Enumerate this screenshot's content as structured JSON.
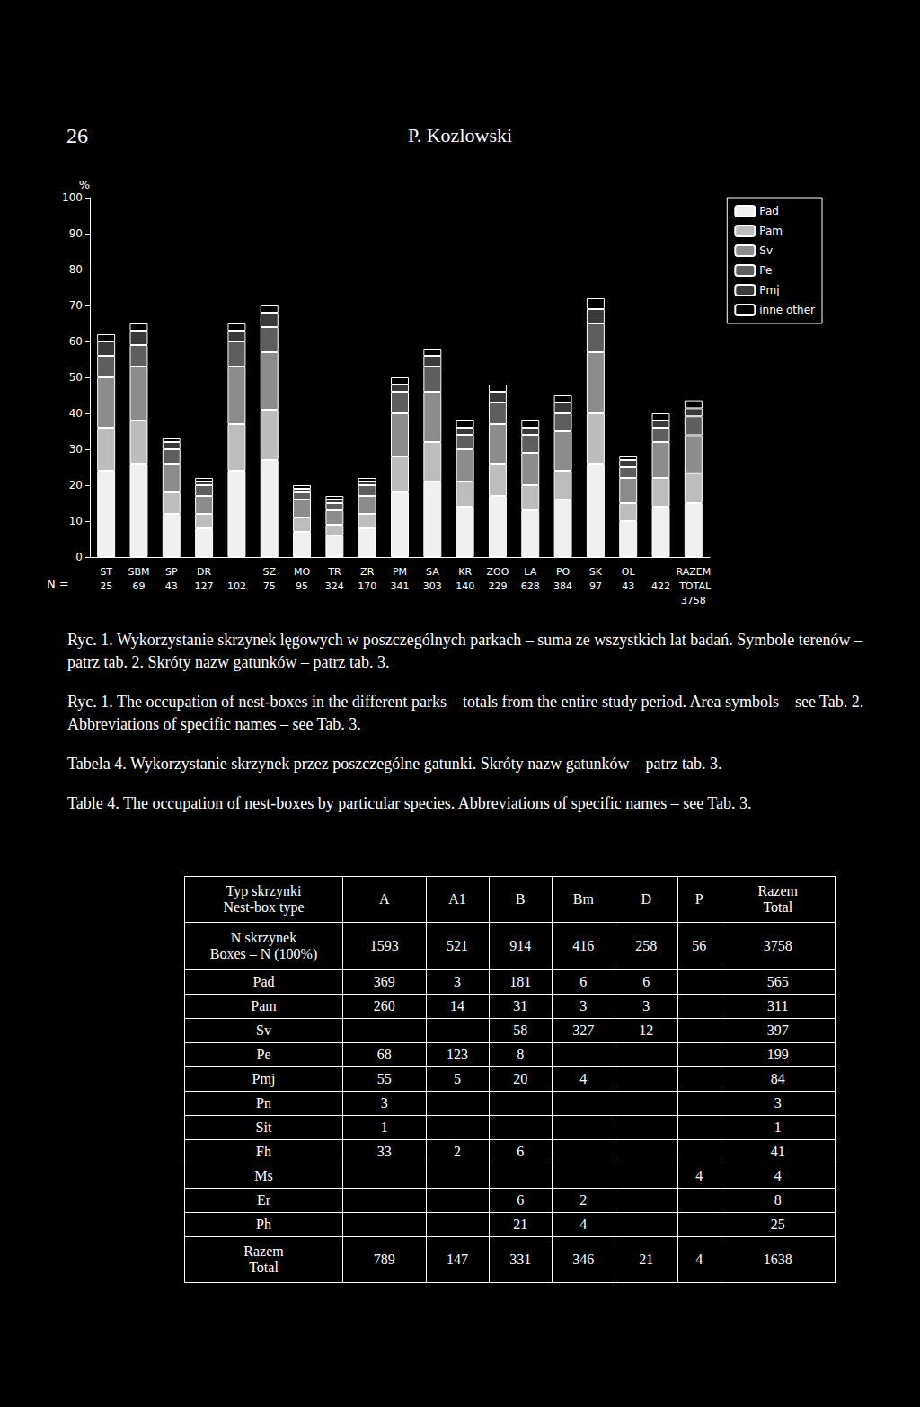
{
  "header": {
    "page": "26",
    "author": "P. Kozlowski"
  },
  "chart_data": {
    "type": "bar",
    "stacked": true,
    "grid": false,
    "legend": "right",
    "y_label": "%",
    "n_label": "N =",
    "categories": [
      "ST",
      "SBM",
      "SP",
      "DR",
      null,
      "SZ",
      "MO",
      "TR",
      "ZR",
      "PM",
      "SA",
      "KR",
      "ZOO",
      "LA",
      "PO",
      "SK",
      "OL",
      null,
      "RAZEM TOTAL"
    ],
    "n": [
      25,
      69,
      43,
      127,
      102,
      75,
      95,
      324,
      170,
      341,
      303,
      140,
      229,
      628,
      384,
      97,
      43,
      422,
      3758
    ],
    "ylim": [
      0,
      100
    ],
    "yticks": [
      0,
      10,
      20,
      30,
      40,
      50,
      60,
      70,
      80,
      90,
      100
    ],
    "series": [
      {
        "name": "Pad",
        "color": "#f0f0f0",
        "values": [
          24,
          26,
          12,
          8,
          24,
          27,
          7,
          6,
          8,
          18,
          21,
          14,
          17,
          13,
          16,
          26,
          10,
          14,
          15.0
        ]
      },
      {
        "name": "Pam",
        "color": "#bdbdbd",
        "values": [
          12,
          12,
          6,
          4,
          13,
          14,
          4,
          3,
          4,
          10,
          11,
          7,
          9,
          7,
          8,
          14,
          5,
          8,
          8.3
        ]
      },
      {
        "name": "Sv",
        "color": "#8c8c8c",
        "values": [
          14,
          15,
          8,
          5,
          16,
          16,
          5,
          4,
          5,
          12,
          14,
          9,
          11,
          9,
          11,
          17,
          7,
          10,
          10.6
        ]
      },
      {
        "name": "Pe",
        "color": "#5e5e5e",
        "values": [
          6,
          6,
          4,
          3,
          7,
          7,
          2,
          2,
          3,
          6,
          7,
          4,
          6,
          5,
          5,
          8,
          3,
          4,
          5.3
        ]
      },
      {
        "name": "Pmj",
        "color": "#3a3a3a",
        "values": [
          4,
          4,
          2,
          1,
          3,
          4,
          1,
          1,
          1,
          2,
          3,
          2,
          3,
          2,
          3,
          4,
          2,
          2,
          2.2
        ]
      },
      {
        "name": "inne other",
        "color": "#000000",
        "values": [
          2,
          2,
          1,
          1,
          2,
          2,
          1,
          1,
          1,
          2,
          2,
          2,
          2,
          2,
          2,
          3,
          1,
          2,
          2.2
        ]
      }
    ]
  },
  "captions": [
    "Ryc. 1. Wykorzystanie skrzynek lęgowych w poszczególnych parkach – suma ze wszystkich lat badań. Symbole terenów – patrz tab. 2. Skróty nazw gatunków – patrz tab. 3.",
    "Ryc. 1. The occupation of nest-boxes in the different parks – totals from the entire study period. Area symbols – see Tab. 2. Abbreviations of specific names – see Tab. 3.",
    "Tabela 4. Wykorzystanie skrzynek przez poszczególne gatunki. Skróty nazw gatunków – patrz tab. 3.",
    "Table 4. The occupation of nest-boxes by particular species. Abbreviations of specific names – see Tab. 3."
  ],
  "table": {
    "header": [
      [
        "Typ skrzynki",
        "Nest-box type"
      ],
      [
        "A"
      ],
      [
        "A1"
      ],
      [
        "B"
      ],
      [
        "Bm"
      ],
      [
        "D"
      ],
      [
        "P"
      ],
      [
        "Razem",
        "Total"
      ]
    ],
    "rows": [
      [
        [
          "N skrzynek",
          "Boxes – N (100%)"
        ],
        "1593",
        "521",
        "914",
        "416",
        "258",
        "56",
        "3758"
      ],
      [
        [
          "Pad"
        ],
        "369",
        "3",
        "181",
        "6",
        "6",
        null,
        "565"
      ],
      [
        [
          "Pam"
        ],
        "260",
        "14",
        "31",
        "3",
        "3",
        null,
        "311"
      ],
      [
        [
          "Sv"
        ],
        null,
        null,
        "58",
        "327",
        "12",
        null,
        "397"
      ],
      [
        [
          "Pe"
        ],
        "68",
        "123",
        "8",
        null,
        null,
        null,
        "199"
      ],
      [
        [
          "Pmj"
        ],
        "55",
        "5",
        "20",
        "4",
        null,
        null,
        "84"
      ],
      [
        [
          "Pn"
        ],
        "3",
        null,
        null,
        null,
        null,
        null,
        "3"
      ],
      [
        [
          "Sit"
        ],
        "1",
        null,
        null,
        null,
        null,
        null,
        "1"
      ],
      [
        [
          "Fh"
        ],
        "33",
        "2",
        "6",
        null,
        null,
        null,
        "41"
      ],
      [
        [
          "Ms"
        ],
        null,
        null,
        null,
        null,
        null,
        "4",
        "4"
      ],
      [
        [
          "Er"
        ],
        null,
        null,
        "6",
        "2",
        null,
        null,
        "8"
      ],
      [
        [
          "Ph"
        ],
        null,
        null,
        "21",
        "4",
        null,
        null,
        "25"
      ],
      [
        [
          "Razem",
          "Total"
        ],
        "789",
        "147",
        "331",
        "346",
        "21",
        "4",
        "1638"
      ]
    ]
  }
}
